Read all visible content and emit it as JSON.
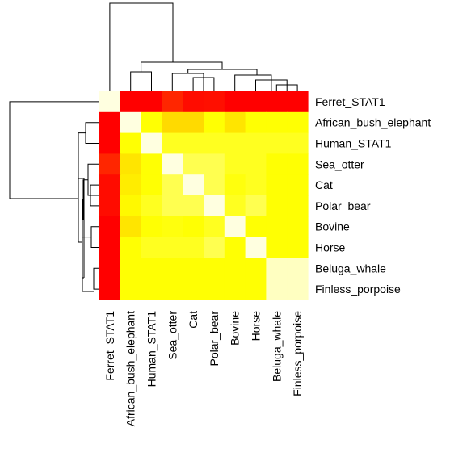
{
  "chart_data": {
    "type": "heatmap",
    "title": "",
    "xlabel": "",
    "ylabel": "",
    "row_labels": [
      "Ferret_STAT1",
      "African_bush_elephant",
      "Human_STAT1",
      "Sea_otter",
      "Cat",
      "Polar_bear",
      "Bovine",
      "Horse",
      "Beluga_whale",
      "Finless_porpoise"
    ],
    "col_labels": [
      "Ferret_STAT1",
      "African_bush_elephant",
      "Human_STAT1",
      "Sea_otter",
      "Cat",
      "Polar_bear",
      "Bovine",
      "Horse",
      "Beluga_whale",
      "Finless_porpoise"
    ],
    "color_scale": [
      "#ff0000",
      "#ff4000",
      "#ff8000",
      "#ffbf00",
      "#ffff00",
      "#ffff9f",
      "#ffffe0"
    ],
    "values": [
      [
        1.0,
        0.0,
        0.0,
        0.1,
        0.03,
        0.04,
        0.0,
        0.0,
        0.0,
        0.0
      ],
      [
        0.0,
        1.0,
        0.67,
        0.57,
        0.57,
        0.67,
        0.6,
        0.67,
        0.67,
        0.67
      ],
      [
        0.0,
        0.67,
        1.0,
        0.7,
        0.7,
        0.7,
        0.7,
        0.7,
        0.7,
        0.7
      ],
      [
        0.1,
        0.6,
        0.67,
        1.0,
        0.75,
        0.75,
        0.7,
        0.7,
        0.67,
        0.67
      ],
      [
        0.03,
        0.62,
        0.67,
        0.75,
        1.0,
        0.75,
        0.68,
        0.7,
        0.67,
        0.67
      ],
      [
        0.03,
        0.65,
        0.7,
        0.75,
        0.75,
        1.0,
        0.7,
        0.75,
        0.67,
        0.67
      ],
      [
        0.0,
        0.6,
        0.67,
        0.68,
        0.67,
        0.7,
        1.0,
        0.67,
        0.67,
        0.67
      ],
      [
        0.0,
        0.67,
        0.7,
        0.7,
        0.7,
        0.75,
        0.67,
        1.0,
        0.67,
        0.67
      ],
      [
        0.0,
        0.67,
        0.67,
        0.67,
        0.67,
        0.67,
        0.67,
        0.67,
        0.92,
        0.92
      ],
      [
        0.0,
        0.67,
        0.67,
        0.67,
        0.67,
        0.67,
        0.67,
        0.67,
        0.92,
        0.92
      ]
    ],
    "legend": "none",
    "row_dendrogram": true,
    "col_dendrogram": true
  }
}
